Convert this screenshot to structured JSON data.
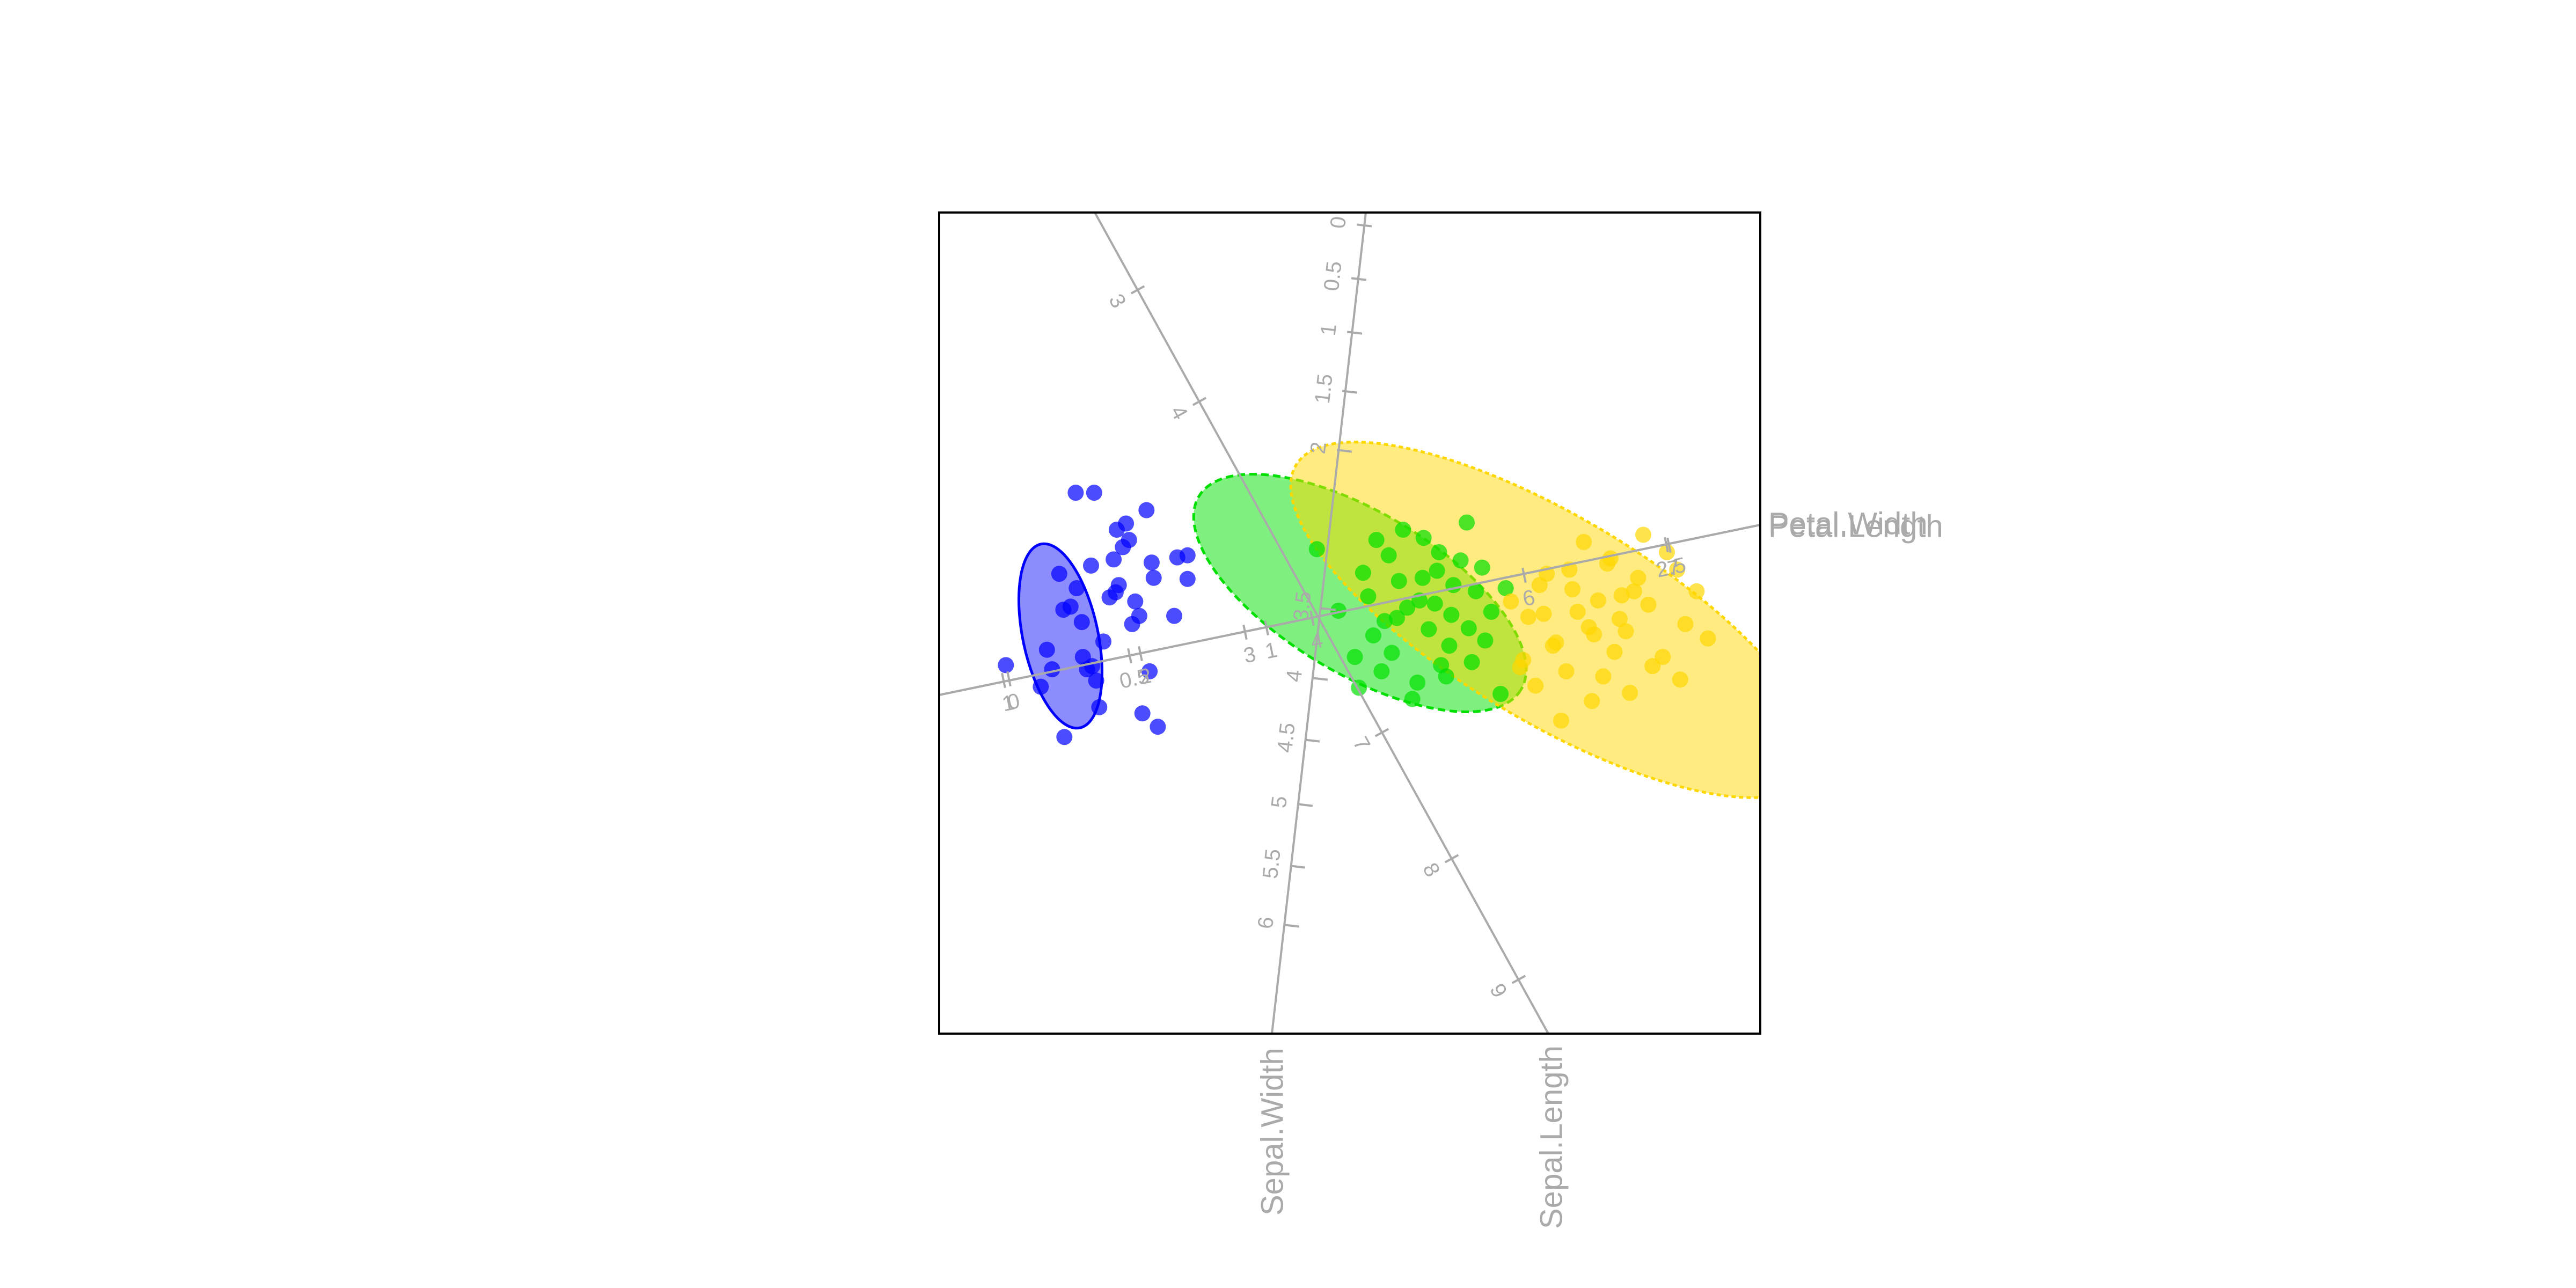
{
  "chart_data": {
    "type": "scatter",
    "title": "",
    "subtitle": "",
    "plot_type": "biplot",
    "colors": {
      "frame": "#000000",
      "axis": "#aaaaaa",
      "series": [
        "#0000ff",
        "#00e000",
        "#ffd700"
      ]
    },
    "axes": [
      {
        "name": "Petal.Width",
        "ticks": [
          {
            "label": "0",
            "value": 0
          },
          {
            "label": "0.5",
            "value": 0.5
          },
          {
            "label": "1",
            "value": 1
          },
          {
            "label": "2.5",
            "value": 2.5
          }
        ]
      },
      {
        "name": "Petal.Length",
        "ticks": [
          {
            "label": "1",
            "value": 1
          },
          {
            "label": "2",
            "value": 2
          },
          {
            "label": "3",
            "value": 3
          },
          {
            "label": "4",
            "value": 4
          },
          {
            "label": "6",
            "value": 6
          },
          {
            "label": "7",
            "value": 7
          }
        ]
      },
      {
        "name": "Sepal.Width",
        "ticks": [
          {
            "label": "0",
            "value": 0
          },
          {
            "label": "0.5",
            "value": 0.5
          },
          {
            "label": "1",
            "value": 1
          },
          {
            "label": "1.5",
            "value": 1.5
          },
          {
            "label": "2",
            "value": 2
          },
          {
            "label": "3.5",
            "value": 3.5
          },
          {
            "label": "4",
            "value": 4
          },
          {
            "label": "4.5",
            "value": 4.5
          },
          {
            "label": "5",
            "value": 5
          },
          {
            "label": "5.5",
            "value": 5.5
          },
          {
            "label": "6",
            "value": 6
          }
        ]
      },
      {
        "name": "Sepal.Length",
        "ticks": [
          {
            "label": "3",
            "value": 3
          },
          {
            "label": "4",
            "value": 4
          },
          {
            "label": "7",
            "value": 7
          },
          {
            "label": "8",
            "value": 8
          },
          {
            "label": "9",
            "value": 9
          }
        ]
      }
    ],
    "series": [
      {
        "points": [
          [
            -2.27,
            0.91
          ],
          [
            -1.91,
            0.44
          ],
          [
            -2.67,
            1.27
          ],
          [
            -3.35,
            -0.41
          ],
          [
            -2.12,
            -0.01
          ],
          [
            -1.58,
            0.66
          ],
          [
            -1.98,
            1.1
          ],
          [
            -2.9,
            -0.45
          ],
          [
            -2.52,
            0.56
          ],
          [
            -2.78,
            -1.11
          ],
          [
            -2.56,
            -0.45
          ],
          [
            -1.68,
            0.64
          ],
          [
            -2.34,
            0.25
          ],
          [
            -2.02,
            -0.88
          ],
          [
            -2.49,
            1.27
          ],
          [
            -2.79,
            0.13
          ],
          [
            -2.3,
            0.62
          ],
          [
            -2.61,
            0.01
          ],
          [
            -2.95,
            -0.26
          ],
          [
            -2.25,
            0.37
          ],
          [
            -1.95,
            -0.47
          ],
          [
            -1.58,
            0.43
          ],
          [
            -2.51,
            -0.42
          ],
          [
            -1.71,
            0.07
          ],
          [
            -2.15,
            0.81
          ],
          [
            -2.44,
            -0.82
          ],
          [
            -2.09,
            0.21
          ],
          [
            -1.93,
            0.59
          ],
          [
            -2.66,
            0.34
          ],
          [
            -2.6,
            -0.33
          ],
          [
            -2.18,
            0.97
          ],
          [
            -3.01,
            -0.62
          ],
          [
            -2.28,
            0.3
          ],
          [
            -2.47,
            -0.56
          ],
          [
            -2.72,
            0.16
          ],
          [
            -2.05,
            0.07
          ],
          [
            -2.4,
            -0.18
          ],
          [
            -1.87,
            -1.01
          ],
          [
            -2.83,
            0.48
          ],
          [
            -2.21,
            0.74
          ]
        ]
      },
      {
        "points": [
          [
            1.23,
            0.31
          ],
          [
            0.85,
            0.51
          ],
          [
            1.47,
            -0.69
          ],
          [
            0.56,
            0.15
          ],
          [
            1.14,
            0.98
          ],
          [
            0.05,
            -0.33
          ],
          [
            0.68,
            0.22
          ],
          [
            -0.32,
            0.72
          ],
          [
            0.89,
            -0.41
          ],
          [
            0.46,
            0.05
          ],
          [
            1.08,
            0.61
          ],
          [
            0.31,
            -0.47
          ],
          [
            0.72,
            0.83
          ],
          [
            1.32,
            -0.17
          ],
          [
            0.18,
            0.26
          ],
          [
            0.99,
            0.08
          ],
          [
            0.94,
            -0.52
          ],
          [
            0.38,
            0.66
          ],
          [
            1.52,
            0.34
          ],
          [
            0.61,
            -0.74
          ],
          [
            0.13,
            0.49
          ],
          [
            0.77,
            -0.06
          ],
          [
            1.19,
            -0.38
          ],
          [
            0.23,
            -0.12
          ],
          [
            0.52,
            0.91
          ],
          [
            1.01,
            0.37
          ],
          [
            0.41,
            -0.29
          ],
          [
            0.83,
            0.19
          ],
          [
            1.29,
            0.54
          ],
          [
            0.26,
            0.81
          ],
          [
            -0.11,
            0.12
          ],
          [
            0.66,
            -0.58
          ],
          [
            1.38,
            0.11
          ],
          [
            0.48,
            0.41
          ],
          [
            0.97,
            -0.22
          ],
          [
            0.09,
            -0.63
          ],
          [
            0.71,
            0.44
          ],
          [
            1.16,
            -0.05
          ],
          [
            0.34,
            0.02
          ],
          [
            0.87,
            0.69
          ]
        ]
      },
      {
        "points": [
          [
            2.42,
            0.22
          ],
          [
            1.66,
            -0.43
          ],
          [
            2.51,
            0.58
          ],
          [
            2.01,
            -0.19
          ],
          [
            2.22,
            0.11
          ],
          [
            3.09,
            0.69
          ],
          [
            1.81,
            -0.61
          ],
          [
            2.77,
            0.31
          ],
          [
            2.95,
            -0.42
          ],
          [
            2.14,
            0.52
          ],
          [
            1.57,
            0.21
          ],
          [
            2.36,
            -0.76
          ],
          [
            1.92,
            0.48
          ],
          [
            2.69,
            -0.08
          ],
          [
            3.38,
            0.31
          ],
          [
            1.74,
            0.06
          ],
          [
            2.58,
            -0.28
          ],
          [
            2.06,
            -0.95
          ],
          [
            2.86,
            0.86
          ],
          [
            3.49,
            -0.15
          ],
          [
            2.28,
            0.79
          ],
          [
            1.98,
            -0.22
          ],
          [
            2.63,
            0.04
          ],
          [
            3.19,
            0.52
          ],
          [
            2.47,
            -0.52
          ],
          [
            1.85,
            0.37
          ],
          [
            2.73,
            -0.68
          ],
          [
            3.27,
            -0.01
          ],
          [
            2.17,
            0.33
          ],
          [
            2.91,
            0.18
          ],
          [
            2.38,
            -0.11
          ],
          [
            1.69,
            -0.36
          ],
          [
            2.81,
            0.44
          ],
          [
            3.05,
            -0.33
          ],
          [
            2.54,
            0.63
          ],
          [
            2.11,
            -0.47
          ],
          [
            2.65,
            0.27
          ],
          [
            3.22,
            -0.55
          ],
          [
            2.33,
            -0.04
          ],
          [
            1.89,
            0.09
          ]
        ]
      }
    ]
  }
}
